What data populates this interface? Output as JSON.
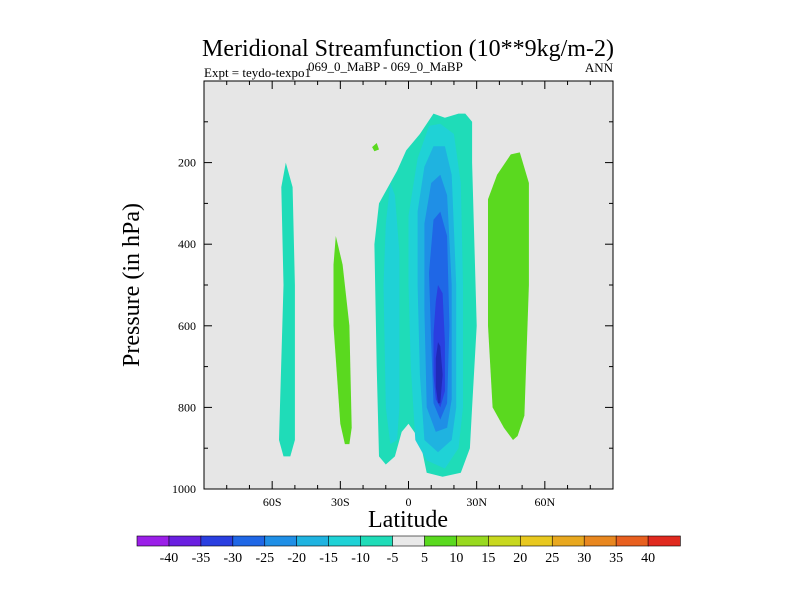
{
  "chart_data": {
    "type": "contour",
    "title": "Meridional Streamfunction (10**9kg/m-2)",
    "subtitle_left": "Expt = teydo-texpo1",
    "subtitle_center": "069_0_MaBP - 069_0_MaBP",
    "subtitle_right": "ANN",
    "xlabel": "Latitude",
    "ylabel": "Pressure (in hPa)",
    "xlim": [
      -90,
      90
    ],
    "ylim": [
      1000,
      0
    ],
    "x_ticks": [
      {
        "value": -60,
        "label": "60S"
      },
      {
        "value": -30,
        "label": "30S"
      },
      {
        "value": 0,
        "label": "0"
      },
      {
        "value": 30,
        "label": "30N"
      },
      {
        "value": 60,
        "label": "60N"
      }
    ],
    "y_ticks": [
      {
        "value": 200,
        "label": "200"
      },
      {
        "value": 400,
        "label": "400"
      },
      {
        "value": 600,
        "label": "600"
      },
      {
        "value": 800,
        "label": "800"
      },
      {
        "value": 1000,
        "label": "1000"
      }
    ],
    "background_color": "#e6e6e6",
    "colorbar": {
      "labels": [
        "-40",
        "-35",
        "-30",
        "-25",
        "-20",
        "-15",
        "-10",
        "-5",
        "5",
        "10",
        "15",
        "20",
        "25",
        "30",
        "35",
        "40"
      ],
      "colors": [
        "#9b1fe8",
        "#6a1fe0",
        "#2a3fe0",
        "#1f67e6",
        "#1f8fe6",
        "#1fb3e0",
        "#1fd2d6",
        "#1fdcb8",
        "#e9e9e9",
        "#5ad91f",
        "#98d91f",
        "#c8d81f",
        "#e8c81f",
        "#e8a81f",
        "#e8871f",
        "#e8601f",
        "#e02a1f"
      ]
    },
    "regions": [
      {
        "level": "-5",
        "color": "#1fdcb8",
        "points": [
          [
            -54,
            200
          ],
          [
            -51,
            260
          ],
          [
            -50,
            500
          ],
          [
            -50,
            880
          ],
          [
            -52,
            920
          ],
          [
            -55,
            920
          ],
          [
            -57,
            880
          ],
          [
            -55,
            500
          ],
          [
            -56,
            260
          ]
        ]
      },
      {
        "level": "-5",
        "color": "#1fdcb8",
        "points": [
          [
            -13,
            300
          ],
          [
            -5,
            220
          ],
          [
            -1,
            170
          ],
          [
            5,
            130
          ],
          [
            11,
            80
          ],
          [
            16,
            90
          ],
          [
            22,
            80
          ],
          [
            25,
            80
          ],
          [
            28,
            100
          ],
          [
            28,
            200
          ],
          [
            30,
            600
          ],
          [
            28,
            800
          ],
          [
            27,
            900
          ],
          [
            23,
            960
          ],
          [
            15,
            970
          ],
          [
            8,
            960
          ],
          [
            5,
            880
          ],
          [
            0,
            840
          ],
          [
            -3,
            860
          ],
          [
            -6,
            920
          ],
          [
            -10,
            940
          ],
          [
            -13,
            920
          ],
          [
            -14,
            700
          ],
          [
            -15,
            400
          ]
        ]
      },
      {
        "level": "-10",
        "color": "#1fd2d6",
        "points": [
          [
            -10,
            350
          ],
          [
            -8,
            250
          ],
          [
            -6,
            280
          ],
          [
            -4,
            420
          ],
          [
            -4,
            800
          ],
          [
            -5,
            880
          ],
          [
            -8,
            890
          ],
          [
            -10,
            800
          ],
          [
            -11,
            500
          ]
        ]
      },
      {
        "level": "-10",
        "color": "#1fd2d6",
        "points": [
          [
            0,
            330
          ],
          [
            4,
            190
          ],
          [
            9,
            110
          ],
          [
            14,
            105
          ],
          [
            20,
            130
          ],
          [
            23,
            250
          ],
          [
            24,
            500
          ],
          [
            24,
            800
          ],
          [
            22,
            900
          ],
          [
            16,
            950
          ],
          [
            8,
            930
          ],
          [
            3,
            880
          ],
          [
            1,
            700
          ],
          [
            0,
            500
          ]
        ]
      },
      {
        "level": "-15",
        "color": "#1fb3e0",
        "points": [
          [
            4,
            320
          ],
          [
            7,
            210
          ],
          [
            11,
            160
          ],
          [
            16,
            160
          ],
          [
            19,
            230
          ],
          [
            21,
            500
          ],
          [
            21,
            800
          ],
          [
            19,
            880
          ],
          [
            13,
            910
          ],
          [
            7,
            880
          ],
          [
            5,
            720
          ],
          [
            4,
            500
          ]
        ]
      },
      {
        "level": "-20",
        "color": "#1f8fe6",
        "points": [
          [
            7,
            350
          ],
          [
            10,
            250
          ],
          [
            14,
            230
          ],
          [
            17,
            280
          ],
          [
            19,
            500
          ],
          [
            19,
            780
          ],
          [
            17,
            850
          ],
          [
            12,
            860
          ],
          [
            8,
            800
          ],
          [
            7,
            560
          ]
        ]
      },
      {
        "level": "-25",
        "color": "#1f67e6",
        "points": [
          [
            9,
            470
          ],
          [
            11,
            340
          ],
          [
            14,
            320
          ],
          [
            17,
            380
          ],
          [
            18,
            600
          ],
          [
            17,
            790
          ],
          [
            14,
            830
          ],
          [
            11,
            790
          ],
          [
            10,
            640
          ]
        ]
      },
      {
        "level": "-30",
        "color": "#2a3fe0",
        "points": [
          [
            11,
            620
          ],
          [
            12,
            540
          ],
          [
            13,
            500
          ],
          [
            15,
            520
          ],
          [
            16,
            640
          ],
          [
            16,
            760
          ],
          [
            14,
            800
          ],
          [
            12,
            780
          ],
          [
            11,
            720
          ]
        ]
      },
      {
        "level": "-35",
        "color": "#1f2ab8",
        "points": [
          [
            12,
            680
          ],
          [
            13,
            640
          ],
          [
            14,
            650
          ],
          [
            15,
            720
          ],
          [
            14,
            790
          ],
          [
            13,
            790
          ],
          [
            12,
            750
          ]
        ]
      },
      {
        "level": "10",
        "color": "#5ad91f",
        "points": [
          [
            -32,
            380
          ],
          [
            -29,
            450
          ],
          [
            -26,
            600
          ],
          [
            -25,
            850
          ],
          [
            -26,
            890
          ],
          [
            -28,
            890
          ],
          [
            -30,
            840
          ],
          [
            -33,
            600
          ],
          [
            -33,
            450
          ]
        ]
      },
      {
        "level": "10",
        "color": "#5ad91f",
        "points": [
          [
            35,
            290
          ],
          [
            39,
            230
          ],
          [
            45,
            180
          ],
          [
            49,
            175
          ],
          [
            53,
            250
          ],
          [
            53,
            500
          ],
          [
            51,
            820
          ],
          [
            48,
            870
          ],
          [
            46,
            880
          ],
          [
            42,
            850
          ],
          [
            37,
            800
          ],
          [
            35,
            600
          ],
          [
            35,
            400
          ]
        ]
      },
      {
        "level": "10",
        "color": "#5ad91f",
        "points": [
          [
            -16,
            162
          ],
          [
            -14,
            152
          ],
          [
            -13,
            168
          ],
          [
            -15,
            172
          ]
        ]
      }
    ]
  }
}
